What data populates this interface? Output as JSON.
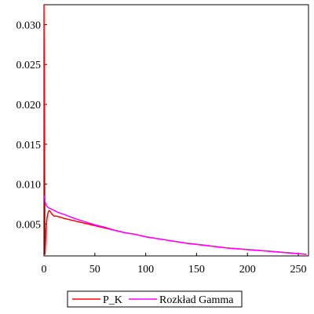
{
  "chart_data": {
    "type": "line",
    "title": "",
    "xlabel": "",
    "ylabel": "",
    "xlim": [
      0,
      260
    ],
    "ylim": [
      0.001,
      0.0325
    ],
    "x_ticks": [
      0,
      50,
      100,
      150,
      200,
      250
    ],
    "y_ticks": [
      0.005,
      0.01,
      0.015,
      0.02,
      0.025,
      0.03
    ],
    "y_tick_labels": [
      "0.005",
      "0.010",
      "0.015",
      "0.020",
      "0.025",
      "0.030"
    ],
    "grid": false,
    "legend_position": "bottom",
    "series": [
      {
        "name": "P_K",
        "color": "#ff0000",
        "x": [
          0,
          0.5,
          1,
          1.5,
          2,
          2.5,
          3,
          4,
          5,
          6,
          7,
          8,
          9,
          10,
          12,
          15,
          20,
          30,
          40,
          50,
          60,
          70,
          80,
          90,
          100,
          120,
          140,
          160,
          180,
          200,
          220,
          240,
          258
        ],
        "y": [
          0.0325,
          0.018,
          0.0012,
          0.0025,
          0.004,
          0.005,
          0.0058,
          0.0064,
          0.0067,
          0.0066,
          0.0064,
          0.0062,
          0.0061,
          0.006,
          0.006,
          0.0059,
          0.0057,
          0.0054,
          0.0051,
          0.0048,
          0.0045,
          0.0042,
          0.0039,
          0.0037,
          0.0034,
          0.003,
          0.0026,
          0.0023,
          0.002,
          0.0018,
          0.0016,
          0.0014,
          0.0012
        ]
      },
      {
        "name": "Rozkład Gamma",
        "color": "#ff00ff",
        "x": [
          0.5,
          1,
          2,
          3,
          4,
          5,
          7,
          10,
          15,
          20,
          30,
          40,
          50,
          60,
          70,
          80,
          90,
          100,
          120,
          140,
          160,
          180,
          200,
          220,
          240,
          258
        ],
        "y": [
          0.0086,
          0.0078,
          0.0074,
          0.0072,
          0.0071,
          0.007,
          0.0069,
          0.0067,
          0.0064,
          0.0062,
          0.0057,
          0.0053,
          0.0049,
          0.0046,
          0.0042,
          0.0039,
          0.0037,
          0.0034,
          0.003,
          0.0026,
          0.0023,
          0.002,
          0.0018,
          0.0016,
          0.0014,
          0.0012
        ]
      }
    ]
  }
}
